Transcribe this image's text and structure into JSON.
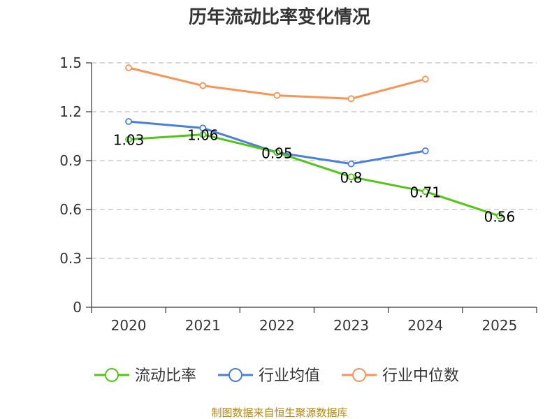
{
  "chart_data": {
    "type": "line",
    "title": "历年流动比率变化情况",
    "categories": [
      "2020",
      "2021",
      "2022",
      "2023",
      "2024",
      "2025"
    ],
    "y_ticks": [
      "0",
      "0.3",
      "0.6",
      "0.9",
      "1.2",
      "1.5"
    ],
    "ylim": [
      0,
      1.5
    ],
    "grid": true,
    "legend_position": "bottom",
    "series": [
      {
        "name": "流动比率",
        "color": "#52c41a",
        "values": [
          1.03,
          1.06,
          0.95,
          0.8,
          0.71,
          0.56
        ],
        "labels": [
          "1.03",
          "1.06",
          "0.95",
          "0.8",
          "0.71",
          "0.56"
        ]
      },
      {
        "name": "行业均值",
        "color": "#4a7fd8",
        "values": [
          1.14,
          1.1,
          0.95,
          0.88,
          0.96,
          null
        ]
      },
      {
        "name": "行业中位数",
        "color": "#f79459",
        "values": [
          1.47,
          1.36,
          1.3,
          1.28,
          1.4,
          null
        ]
      }
    ],
    "source": "制图数据来自恒生聚源数据库"
  }
}
